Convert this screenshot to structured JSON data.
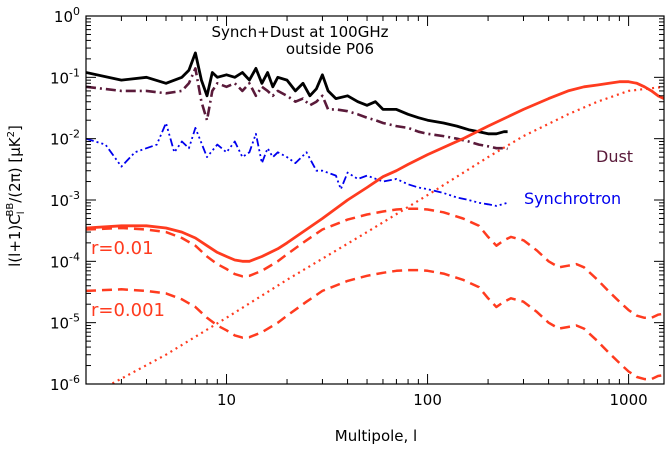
{
  "chart_data": {
    "type": "line",
    "title_line1": "Synch+Dust at 100GHz",
    "title_line2": "outside P06",
    "xlabel": "Multipole, l",
    "ylabel": "l(l+1)C_l^BB/(2π) [μK²]",
    "x_scale": "log",
    "y_scale": "log",
    "xlim": [
      2,
      1500
    ],
    "ylim": [
      1e-06,
      1
    ],
    "x_ticks": [
      {
        "value": 10,
        "label": "10"
      },
      {
        "value": 100,
        "label": "100"
      },
      {
        "value": 1000,
        "label": "1000"
      }
    ],
    "y_ticks": [
      {
        "value": 1e-06,
        "mant": "10",
        "exp": "-6"
      },
      {
        "value": 1e-05,
        "mant": "10",
        "exp": "-5"
      },
      {
        "value": 0.0001,
        "mant": "10",
        "exp": "-4"
      },
      {
        "value": 0.001,
        "mant": "10",
        "exp": "-3"
      },
      {
        "value": 0.01,
        "mant": "10",
        "exp": "-2"
      },
      {
        "value": 0.1,
        "mant": "10",
        "exp": "-1"
      },
      {
        "value": 1,
        "mant": "10",
        "exp": "0"
      }
    ],
    "annotations": {
      "dust": "Dust",
      "synchrotron": "Synchrotron",
      "r1": "r=0.01",
      "r2": "r=0.001"
    },
    "series": [
      {
        "key": "total",
        "color": "#000000",
        "dash": "solid",
        "width": 2.8,
        "points": [
          [
            2,
            0.12
          ],
          [
            3,
            0.09
          ],
          [
            4,
            0.1
          ],
          [
            5,
            0.08
          ],
          [
            6,
            0.1
          ],
          [
            6.5,
            0.13
          ],
          [
            7,
            0.25
          ],
          [
            7.5,
            0.09
          ],
          [
            8,
            0.05
          ],
          [
            8.5,
            0.12
          ],
          [
            9,
            0.1
          ],
          [
            10,
            0.11
          ],
          [
            11,
            0.1
          ],
          [
            12,
            0.12
          ],
          [
            13,
            0.09
          ],
          [
            14,
            0.14
          ],
          [
            15,
            0.08
          ],
          [
            16,
            0.12
          ],
          [
            17,
            0.07
          ],
          [
            18,
            0.1
          ],
          [
            20,
            0.09
          ],
          [
            22,
            0.06
          ],
          [
            24,
            0.08
          ],
          [
            26,
            0.05
          ],
          [
            28,
            0.065
          ],
          [
            30,
            0.11
          ],
          [
            32,
            0.06
          ],
          [
            35,
            0.045
          ],
          [
            40,
            0.05
          ],
          [
            45,
            0.04
          ],
          [
            50,
            0.035
          ],
          [
            55,
            0.04
          ],
          [
            60,
            0.03
          ],
          [
            70,
            0.03
          ],
          [
            80,
            0.025
          ],
          [
            90,
            0.022
          ],
          [
            100,
            0.02
          ],
          [
            120,
            0.018
          ],
          [
            140,
            0.016
          ],
          [
            160,
            0.014
          ],
          [
            180,
            0.013
          ],
          [
            200,
            0.012
          ],
          [
            220,
            0.012
          ],
          [
            240,
            0.013
          ],
          [
            250,
            0.013
          ]
        ]
      },
      {
        "key": "dust",
        "color": "#5a1a3a",
        "dash": "dashdot",
        "width": 2.6,
        "points": [
          [
            2,
            0.07
          ],
          [
            3,
            0.06
          ],
          [
            4,
            0.06
          ],
          [
            5,
            0.055
          ],
          [
            6,
            0.06
          ],
          [
            6.5,
            0.08
          ],
          [
            7,
            0.14
          ],
          [
            7.5,
            0.04
          ],
          [
            8,
            0.02
          ],
          [
            8.5,
            0.06
          ],
          [
            9,
            0.08
          ],
          [
            10,
            0.07
          ],
          [
            11,
            0.08
          ],
          [
            12,
            0.06
          ],
          [
            13,
            0.08
          ],
          [
            14,
            0.05
          ],
          [
            15,
            0.07
          ],
          [
            16,
            0.06
          ],
          [
            17,
            0.05
          ],
          [
            18,
            0.06
          ],
          [
            20,
            0.05
          ],
          [
            22,
            0.04
          ],
          [
            24,
            0.045
          ],
          [
            26,
            0.035
          ],
          [
            28,
            0.04
          ],
          [
            30,
            0.05
          ],
          [
            32,
            0.03
          ],
          [
            35,
            0.03
          ],
          [
            40,
            0.028
          ],
          [
            45,
            0.025
          ],
          [
            50,
            0.022
          ],
          [
            55,
            0.02
          ],
          [
            60,
            0.018
          ],
          [
            70,
            0.016
          ],
          [
            80,
            0.015
          ],
          [
            90,
            0.013
          ],
          [
            100,
            0.012
          ],
          [
            120,
            0.011
          ],
          [
            140,
            0.01
          ],
          [
            160,
            0.009
          ],
          [
            180,
            0.008
          ],
          [
            200,
            0.0075
          ],
          [
            220,
            0.007
          ],
          [
            240,
            0.007
          ],
          [
            250,
            0.0068
          ]
        ]
      },
      {
        "key": "synchrotron",
        "color": "#0000ee",
        "dash": "dashdot3",
        "width": 1.8,
        "points": [
          [
            2,
            0.01
          ],
          [
            2.5,
            0.008
          ],
          [
            3,
            0.0035
          ],
          [
            3.5,
            0.006
          ],
          [
            4,
            0.007
          ],
          [
            4.5,
            0.008
          ],
          [
            5,
            0.018
          ],
          [
            5.5,
            0.006
          ],
          [
            6,
            0.009
          ],
          [
            6.5,
            0.007
          ],
          [
            7,
            0.015
          ],
          [
            8,
            0.005
          ],
          [
            9,
            0.008
          ],
          [
            10,
            0.006
          ],
          [
            11,
            0.009
          ],
          [
            12,
            0.005
          ],
          [
            13,
            0.006
          ],
          [
            14,
            0.012
          ],
          [
            15,
            0.004
          ],
          [
            16,
            0.007
          ],
          [
            17,
            0.005
          ],
          [
            18,
            0.006
          ],
          [
            20,
            0.005
          ],
          [
            22,
            0.004
          ],
          [
            25,
            0.006
          ],
          [
            28,
            0.003
          ],
          [
            30,
            0.003
          ],
          [
            35,
            0.0025
          ],
          [
            37,
            0.0015
          ],
          [
            40,
            0.0028
          ],
          [
            45,
            0.0022
          ],
          [
            50,
            0.0025
          ],
          [
            60,
            0.002
          ],
          [
            70,
            0.0022
          ],
          [
            80,
            0.0018
          ],
          [
            90,
            0.0016
          ],
          [
            100,
            0.0015
          ],
          [
            120,
            0.0013
          ],
          [
            140,
            0.0011
          ],
          [
            160,
            0.001
          ],
          [
            180,
            0.0009
          ],
          [
            200,
            0.00085
          ],
          [
            220,
            0.0008
          ],
          [
            250,
            0.0009
          ]
        ]
      },
      {
        "key": "r001_total",
        "color": "#ff3b1f",
        "dash": "solid",
        "width": 2.8,
        "points": [
          [
            2,
            0.00035
          ],
          [
            3,
            0.00038
          ],
          [
            4,
            0.00038
          ],
          [
            5,
            0.00035
          ],
          [
            6,
            0.0003
          ],
          [
            7,
            0.00024
          ],
          [
            8,
            0.00018
          ],
          [
            9,
            0.00014
          ],
          [
            10,
            0.00012
          ],
          [
            11,
            0.000105
          ],
          [
            12,
            0.0001
          ],
          [
            13,
            0.0001
          ],
          [
            15,
            0.00012
          ],
          [
            18,
            0.00016
          ],
          [
            20,
            0.0002
          ],
          [
            30,
            0.0005
          ],
          [
            40,
            0.001
          ],
          [
            50,
            0.0016
          ],
          [
            60,
            0.0024
          ],
          [
            70,
            0.003
          ],
          [
            80,
            0.0038
          ],
          [
            100,
            0.0055
          ],
          [
            150,
            0.01
          ],
          [
            200,
            0.016
          ],
          [
            300,
            0.03
          ],
          [
            400,
            0.045
          ],
          [
            500,
            0.06
          ],
          [
            600,
            0.07
          ],
          [
            700,
            0.075
          ],
          [
            800,
            0.08
          ],
          [
            900,
            0.085
          ],
          [
            1000,
            0.085
          ],
          [
            1100,
            0.08
          ],
          [
            1200,
            0.07
          ],
          [
            1300,
            0.06
          ],
          [
            1400,
            0.05
          ],
          [
            1500,
            0.045
          ]
        ]
      },
      {
        "key": "r001_tensor",
        "color": "#ff3b1f",
        "dash": "dashed",
        "width": 2.5,
        "points": [
          [
            2,
            0.00033
          ],
          [
            3,
            0.00035
          ],
          [
            4,
            0.00033
          ],
          [
            5,
            0.0003
          ],
          [
            6,
            0.00024
          ],
          [
            7,
            0.00018
          ],
          [
            8,
            0.00012
          ],
          [
            9,
            9e-05
          ],
          [
            10,
            7.5e-05
          ],
          [
            11,
            6.2e-05
          ],
          [
            12,
            5.7e-05
          ],
          [
            13,
            5.8e-05
          ],
          [
            15,
            7e-05
          ],
          [
            18,
            0.0001
          ],
          [
            20,
            0.00013
          ],
          [
            25,
            0.00022
          ],
          [
            30,
            0.00033
          ],
          [
            40,
            0.00048
          ],
          [
            50,
            0.00058
          ],
          [
            60,
            0.00065
          ],
          [
            70,
            0.0007
          ],
          [
            80,
            0.00072
          ],
          [
            90,
            0.00072
          ],
          [
            100,
            0.0007
          ],
          [
            120,
            0.00063
          ],
          [
            150,
            0.0005
          ],
          [
            180,
            0.00038
          ],
          [
            200,
            0.00025
          ],
          [
            220,
            0.00018
          ],
          [
            240,
            0.00022
          ],
          [
            260,
            0.00025
          ],
          [
            300,
            0.00022
          ],
          [
            350,
            0.00015
          ],
          [
            400,
            0.0001
          ],
          [
            450,
            8e-05
          ],
          [
            500,
            8.5e-05
          ],
          [
            550,
            9e-05
          ],
          [
            600,
            8e-05
          ],
          [
            700,
            5e-05
          ],
          [
            800,
            3.2e-05
          ],
          [
            900,
            2.2e-05
          ],
          [
            1000,
            1.6e-05
          ],
          [
            1100,
            1.3e-05
          ],
          [
            1200,
            1.2e-05
          ],
          [
            1300,
            1.2e-05
          ],
          [
            1400,
            1.35e-05
          ],
          [
            1500,
            1.4e-05
          ]
        ]
      },
      {
        "key": "r0001_tensor",
        "color": "#ff3b1f",
        "dash": "dashed",
        "width": 2.5,
        "points": [
          [
            2,
            3.3e-05
          ],
          [
            3,
            3.5e-05
          ],
          [
            4,
            3.3e-05
          ],
          [
            5,
            3e-05
          ],
          [
            6,
            2.4e-05
          ],
          [
            7,
            1.8e-05
          ],
          [
            8,
            1.2e-05
          ],
          [
            9,
            9e-06
          ],
          [
            10,
            7.5e-06
          ],
          [
            11,
            6.2e-06
          ],
          [
            12,
            5.7e-06
          ],
          [
            13,
            5.8e-06
          ],
          [
            15,
            7e-06
          ],
          [
            18,
            1e-05
          ],
          [
            20,
            1.3e-05
          ],
          [
            25,
            2.2e-05
          ],
          [
            30,
            3.3e-05
          ],
          [
            40,
            4.8e-05
          ],
          [
            50,
            5.8e-05
          ],
          [
            60,
            6.5e-05
          ],
          [
            70,
            7e-05
          ],
          [
            80,
            7.2e-05
          ],
          [
            90,
            7.2e-05
          ],
          [
            100,
            7e-05
          ],
          [
            120,
            6.3e-05
          ],
          [
            150,
            5e-05
          ],
          [
            180,
            3.8e-05
          ],
          [
            200,
            2.5e-05
          ],
          [
            220,
            1.8e-05
          ],
          [
            240,
            2.2e-05
          ],
          [
            260,
            2.5e-05
          ],
          [
            300,
            2.2e-05
          ],
          [
            350,
            1.5e-05
          ],
          [
            400,
            1e-05
          ],
          [
            450,
            8e-06
          ],
          [
            500,
            8.5e-06
          ],
          [
            550,
            9e-06
          ],
          [
            600,
            8e-06
          ],
          [
            700,
            5e-06
          ],
          [
            800,
            3.2e-06
          ],
          [
            900,
            2.2e-06
          ],
          [
            1000,
            1.6e-06
          ],
          [
            1100,
            1.3e-06
          ],
          [
            1200,
            1.2e-06
          ],
          [
            1300,
            1.2e-06
          ],
          [
            1400,
            1.35e-06
          ],
          [
            1500,
            1.4e-06
          ]
        ]
      },
      {
        "key": "lensing",
        "color": "#ff3b1f",
        "dash": "dotted",
        "width": 2.2,
        "points": [
          [
            2,
            6e-07
          ],
          [
            5,
            3e-06
          ],
          [
            10,
            1.2e-05
          ],
          [
            20,
            5e-05
          ],
          [
            50,
            0.0003
          ],
          [
            100,
            0.0012
          ],
          [
            200,
            0.005
          ],
          [
            300,
            0.011
          ],
          [
            500,
            0.025
          ],
          [
            700,
            0.04
          ],
          [
            1000,
            0.06
          ],
          [
            1500,
            0.07
          ]
        ]
      }
    ]
  }
}
